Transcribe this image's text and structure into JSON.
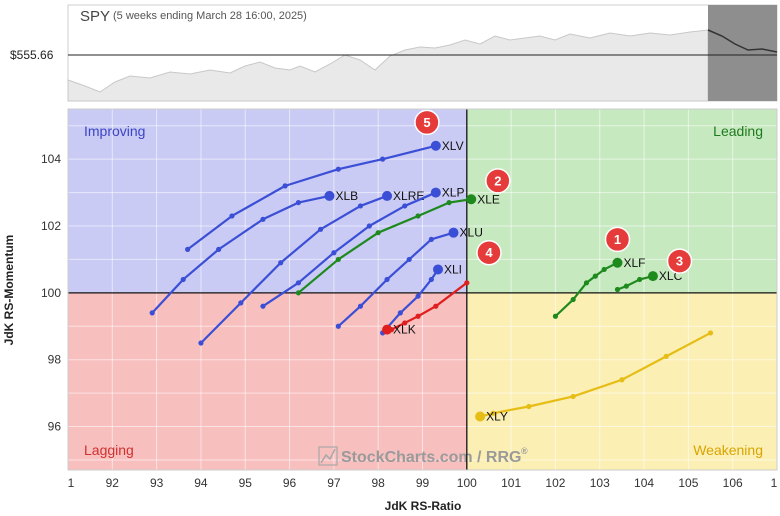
{
  "header": {
    "symbol": "SPY",
    "subtitle": "(5 weeks ending March 28 16:00, 2025)",
    "price_label": "$555.66"
  },
  "watermark": "StockCharts.com / RRG",
  "watermark_mark": "®",
  "chart_data": {
    "type": "scatter",
    "xlabel": "JdK RS-Ratio",
    "ylabel": "JdK RS-Momentum",
    "xlim": [
      91,
      107
    ],
    "ylim": [
      94.7,
      105.5
    ],
    "x_ticks": [
      "1",
      "92",
      "93",
      "94",
      "95",
      "96",
      "97",
      "98",
      "99",
      "100",
      "101",
      "102",
      "103",
      "104",
      "105",
      "106",
      "1"
    ],
    "y_ticks": [
      96,
      98,
      100,
      102,
      104
    ],
    "center": [
      100,
      100
    ],
    "quadrants": {
      "improving": "Improving",
      "leading": "Leading",
      "weakening": "Weakening",
      "lagging": "Lagging"
    },
    "colors": {
      "improving_bg": "#c9cbf5",
      "leading_bg": "#c7e9c0",
      "weakening_bg": "#fbefb4",
      "lagging_bg": "#f8bfbf",
      "improving_text": "#3b45c4",
      "leading_text": "#1f7a1f",
      "weakening_text": "#d9a400",
      "lagging_text": "#d03030",
      "blue": "#3b4fd6",
      "green": "#1e8a1e",
      "red": "#e01e1e",
      "yellow": "#e6bd14",
      "badge": "#e63b3b"
    },
    "series": [
      {
        "name": "XLV",
        "color": "blue",
        "points": [
          [
            93.7,
            101.3
          ],
          [
            94.7,
            102.3
          ],
          [
            95.9,
            103.2
          ],
          [
            97.1,
            103.7
          ],
          [
            98.1,
            104.0
          ],
          [
            99.3,
            104.4
          ]
        ]
      },
      {
        "name": "XLB",
        "color": "blue",
        "points": [
          [
            92.9,
            99.4
          ],
          [
            93.6,
            100.4
          ],
          [
            94.4,
            101.3
          ],
          [
            95.4,
            102.2
          ],
          [
            96.2,
            102.7
          ],
          [
            96.9,
            102.9
          ]
        ]
      },
      {
        "name": "XLRE",
        "color": "blue",
        "points": [
          [
            94.0,
            98.5
          ],
          [
            94.9,
            99.7
          ],
          [
            95.8,
            100.9
          ],
          [
            96.7,
            101.9
          ],
          [
            97.6,
            102.6
          ],
          [
            98.2,
            102.9
          ]
        ]
      },
      {
        "name": "XLP",
        "color": "blue",
        "points": [
          [
            95.4,
            99.6
          ],
          [
            96.2,
            100.3
          ],
          [
            97.0,
            101.2
          ],
          [
            97.8,
            102.0
          ],
          [
            98.6,
            102.6
          ],
          [
            99.3,
            103.0
          ]
        ]
      },
      {
        "name": "XLU",
        "color": "blue",
        "points": [
          [
            97.1,
            99.0
          ],
          [
            97.6,
            99.6
          ],
          [
            98.2,
            100.4
          ],
          [
            98.7,
            101.0
          ],
          [
            99.2,
            101.6
          ],
          [
            99.7,
            101.8
          ]
        ]
      },
      {
        "name": "XLI",
        "color": "blue",
        "points": [
          [
            98.1,
            98.8
          ],
          [
            98.5,
            99.4
          ],
          [
            98.9,
            99.9
          ],
          [
            99.2,
            100.4
          ],
          [
            99.35,
            100.7
          ]
        ]
      },
      {
        "name": "XLE",
        "color": "green",
        "points": [
          [
            96.2,
            100.0
          ],
          [
            97.1,
            101.0
          ],
          [
            98.0,
            101.8
          ],
          [
            98.9,
            102.3
          ],
          [
            99.6,
            102.7
          ],
          [
            100.1,
            102.8
          ]
        ]
      },
      {
        "name": "XLK",
        "color": "red",
        "points": [
          [
            100.0,
            100.3
          ],
          [
            99.3,
            99.6
          ],
          [
            98.9,
            99.3
          ],
          [
            98.6,
            99.1
          ],
          [
            98.3,
            98.9
          ],
          [
            98.2,
            98.9
          ]
        ]
      },
      {
        "name": "XLF",
        "color": "green",
        "points": [
          [
            102.0,
            99.3
          ],
          [
            102.4,
            99.8
          ],
          [
            102.7,
            100.3
          ],
          [
            102.9,
            100.5
          ],
          [
            103.1,
            100.7
          ],
          [
            103.4,
            100.9
          ]
        ]
      },
      {
        "name": "XLC",
        "color": "green",
        "points": [
          [
            103.4,
            100.1
          ],
          [
            103.6,
            100.2
          ],
          [
            103.9,
            100.4
          ],
          [
            104.2,
            100.5
          ]
        ]
      },
      {
        "name": "XLY",
        "color": "yellow",
        "points": [
          [
            105.5,
            98.8
          ],
          [
            104.5,
            98.1
          ],
          [
            103.5,
            97.4
          ],
          [
            102.4,
            96.9
          ],
          [
            101.4,
            96.6
          ],
          [
            100.6,
            96.4
          ],
          [
            100.3,
            96.3
          ]
        ]
      }
    ],
    "badges": [
      {
        "text": "1",
        "x": 103.4,
        "y": 101.6
      },
      {
        "text": "2",
        "x": 100.7,
        "y": 103.35
      },
      {
        "text": "3",
        "x": 104.8,
        "y": 100.95
      },
      {
        "text": "4",
        "x": 100.5,
        "y": 101.2
      },
      {
        "text": "5",
        "x": 99.1,
        "y": 105.1
      }
    ]
  }
}
